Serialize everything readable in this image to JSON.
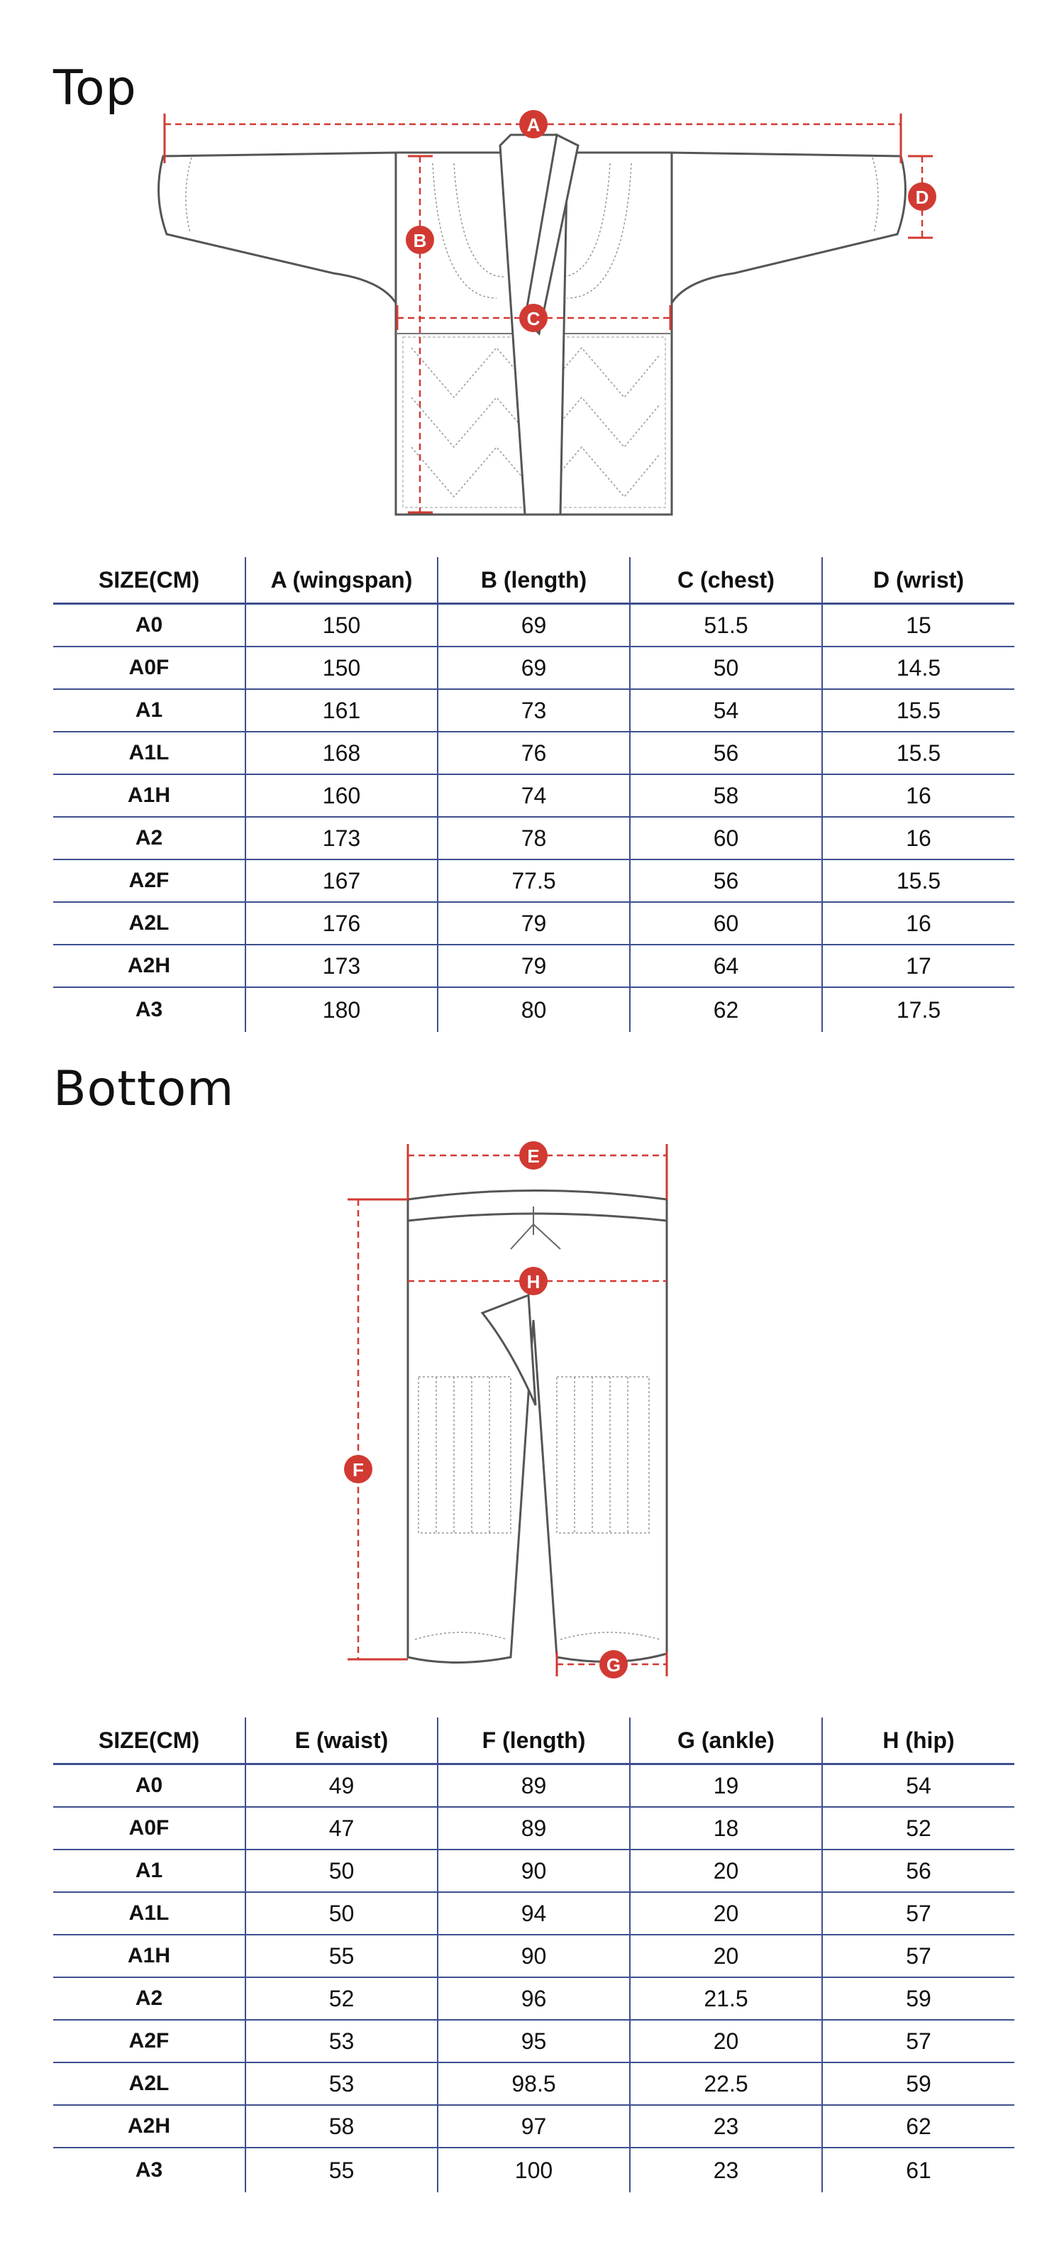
{
  "top": {
    "title": "Top",
    "labels": {
      "a": "A",
      "b": "B",
      "c": "C",
      "d": "D"
    },
    "table": {
      "headers": [
        "SIZE(CM)",
        "A (wingspan)",
        "B (length)",
        "C (chest)",
        "D (wrist)"
      ],
      "rows": [
        [
          "A0",
          "150",
          "69",
          "51.5",
          "15"
        ],
        [
          "A0F",
          "150",
          "69",
          "50",
          "14.5"
        ],
        [
          "A1",
          "161",
          "73",
          "54",
          "15.5"
        ],
        [
          "A1L",
          "168",
          "76",
          "56",
          "15.5"
        ],
        [
          "A1H",
          "160",
          "74",
          "58",
          "16"
        ],
        [
          "A2",
          "173",
          "78",
          "60",
          "16"
        ],
        [
          "A2F",
          "167",
          "77.5",
          "56",
          "15.5"
        ],
        [
          "A2L",
          "176",
          "79",
          "60",
          "16"
        ],
        [
          "A2H",
          "173",
          "79",
          "64",
          "17"
        ],
        [
          "A3",
          "180",
          "80",
          "62",
          "17.5"
        ]
      ]
    }
  },
  "bottom": {
    "title": "Bottom",
    "labels": {
      "e": "E",
      "f": "F",
      "g": "G",
      "h": "H"
    },
    "table": {
      "headers": [
        "SIZE(CM)",
        "E (waist)",
        "F (length)",
        "G (ankle)",
        "H (hip)"
      ],
      "rows": [
        [
          "A0",
          "49",
          "89",
          "19",
          "54"
        ],
        [
          "A0F",
          "47",
          "89",
          "18",
          "52"
        ],
        [
          "A1",
          "50",
          "90",
          "20",
          "56"
        ],
        [
          "A1L",
          "50",
          "94",
          "20",
          "57"
        ],
        [
          "A1H",
          "55",
          "90",
          "20",
          "57"
        ],
        [
          "A2",
          "52",
          "96",
          "21.5",
          "59"
        ],
        [
          "A2F",
          "53",
          "95",
          "20",
          "57"
        ],
        [
          "A2L",
          "53",
          "98.5",
          "22.5",
          "59"
        ],
        [
          "A2H",
          "58",
          "97",
          "23",
          "62"
        ],
        [
          "A3",
          "55",
          "100",
          "23",
          "61"
        ]
      ]
    }
  },
  "colors": {
    "accent": "#d13a32",
    "table_lines": "#3d4f8e"
  }
}
